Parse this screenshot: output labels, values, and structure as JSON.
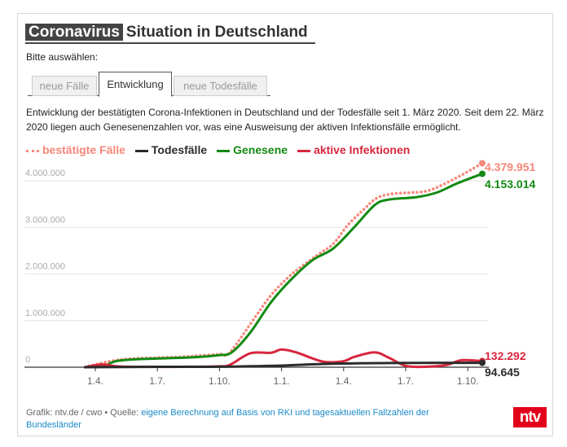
{
  "header": {
    "title_highlight": "Coronavirus",
    "title_rest": "Situation in Deutschland",
    "prompt": "Bitte auswählen:"
  },
  "tabs": [
    {
      "label": "neue Fälle",
      "active": false
    },
    {
      "label": "Entwicklung",
      "active": true
    },
    {
      "label": "neue Todesfälle",
      "active": false
    }
  ],
  "description": "Entwicklung der bestätigten Corona-Infektionen in Deutschland und der Todesfälle seit 1. März 2020. Seit dem 22. März 2020 liegen auch Genesenenzahlen vor, was eine Ausweisung der aktiven Infektionsfälle ermöglicht.",
  "footer": {
    "prefix": "Grafik: ntv.de / cwo • Quelle: ",
    "link": "eigene Berechnung auf Basis von RKI und tagesaktuellen Fallzahlen der Bundesländer"
  },
  "logo": "ntv",
  "chart_data": {
    "type": "line",
    "x_unit": "months since 1 March 2020",
    "ylim": [
      0,
      4400000
    ],
    "yticks": [
      {
        "value": 0,
        "label": "0"
      },
      {
        "value": 1000000,
        "label": "1.000.000"
      },
      {
        "value": 2000000,
        "label": "2.000.000"
      },
      {
        "value": 3000000,
        "label": "3.000.000"
      },
      {
        "value": 4000000,
        "label": "4.000.000"
      }
    ],
    "xticks": [
      {
        "value": 1,
        "label": "1.4."
      },
      {
        "value": 4,
        "label": "1.7."
      },
      {
        "value": 7,
        "label": "1.10."
      },
      {
        "value": 10,
        "label": "1.1."
      },
      {
        "value": 13,
        "label": "1.4."
      },
      {
        "value": 16,
        "label": "1.7."
      },
      {
        "value": 19,
        "label": "1.10."
      }
    ],
    "grid": true,
    "legend_position": "top-left",
    "series": [
      {
        "name": "bestätigte Fälle",
        "color": "#f7877a",
        "dashed": true,
        "end_label": "4.379.951",
        "points": [
          [
            0.5,
            0
          ],
          [
            1,
            60000
          ],
          [
            2,
            150000
          ],
          [
            3,
            190000
          ],
          [
            5,
            220000
          ],
          [
            6,
            250000
          ],
          [
            7,
            280000
          ],
          [
            7.5,
            320000
          ],
          [
            8.7,
            1060000
          ],
          [
            9.5,
            1550000
          ],
          [
            10.5,
            2000000
          ],
          [
            11.7,
            2400000
          ],
          [
            12.5,
            2650000
          ],
          [
            13.2,
            3050000
          ],
          [
            14,
            3400000
          ],
          [
            14.6,
            3630000
          ],
          [
            15.3,
            3720000
          ],
          [
            16.2,
            3750000
          ],
          [
            17,
            3780000
          ],
          [
            17.8,
            3920000
          ],
          [
            18.8,
            4150000
          ],
          [
            19.7,
            4379951
          ]
        ]
      },
      {
        "name": "Todesfälle",
        "color": "#2b2b2b",
        "dashed": false,
        "end_label": "94.645",
        "points": [
          [
            0.5,
            0
          ],
          [
            4,
            8000
          ],
          [
            7,
            10000
          ],
          [
            9,
            25000
          ],
          [
            10,
            35000
          ],
          [
            12,
            70000
          ],
          [
            14,
            85000
          ],
          [
            16,
            91000
          ],
          [
            19.7,
            94645
          ]
        ]
      },
      {
        "name": "Genesene",
        "color": "#138a13",
        "dashed": false,
        "end_label": "4.153.014",
        "points": [
          [
            1,
            0
          ],
          [
            1.5,
            40000
          ],
          [
            2,
            130000
          ],
          [
            3,
            170000
          ],
          [
            5,
            200000
          ],
          [
            6,
            220000
          ],
          [
            7,
            260000
          ],
          [
            7.6,
            320000
          ],
          [
            8.5,
            750000
          ],
          [
            9.5,
            1400000
          ],
          [
            10.5,
            1900000
          ],
          [
            11.5,
            2300000
          ],
          [
            12.5,
            2550000
          ],
          [
            13.5,
            3000000
          ],
          [
            14.5,
            3480000
          ],
          [
            15.2,
            3600000
          ],
          [
            16.5,
            3650000
          ],
          [
            17.5,
            3750000
          ],
          [
            18.5,
            3950000
          ],
          [
            19.7,
            4153014
          ]
        ]
      },
      {
        "name": "aktive Infektionen",
        "color": "#d7263d",
        "dashed": false,
        "end_label": "132.292",
        "points": [
          [
            0.5,
            0
          ],
          [
            1.3,
            60000
          ],
          [
            2,
            20000
          ],
          [
            3,
            8000
          ],
          [
            6,
            10000
          ],
          [
            7,
            20000
          ],
          [
            7.5,
            50000
          ],
          [
            8.5,
            300000
          ],
          [
            9.5,
            310000
          ],
          [
            10,
            380000
          ],
          [
            10.7,
            320000
          ],
          [
            12,
            120000
          ],
          [
            13,
            130000
          ],
          [
            13.5,
            220000
          ],
          [
            14.5,
            320000
          ],
          [
            15.2,
            200000
          ],
          [
            16,
            30000
          ],
          [
            17,
            10000
          ],
          [
            18,
            50000
          ],
          [
            18.7,
            150000
          ],
          [
            19.7,
            132292
          ]
        ]
      }
    ]
  }
}
